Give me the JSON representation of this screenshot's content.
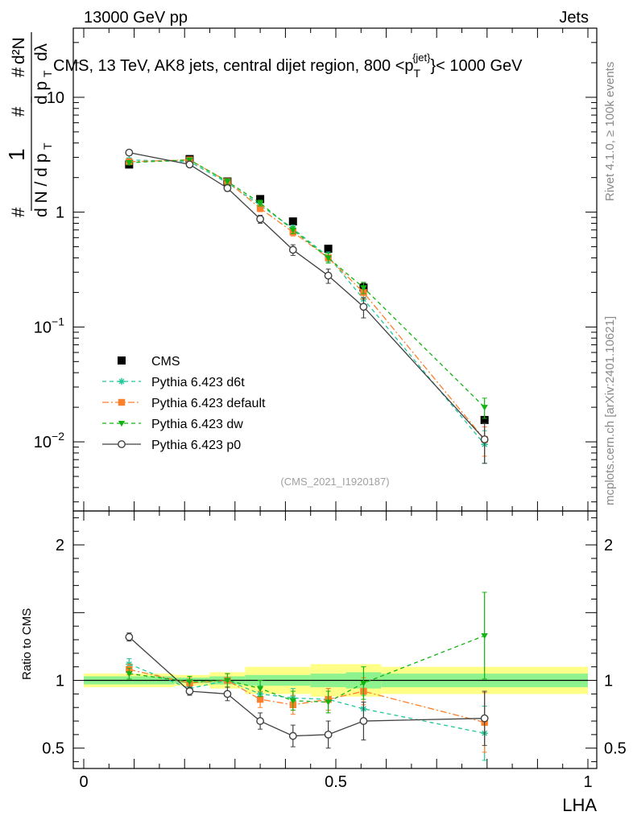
{
  "header": {
    "left": "13000 GeV pp",
    "right": "Jets"
  },
  "title": {
    "main": "CMS, 13 TeV, AK8 jets, central dijet region, 800 <p",
    "sub": "T",
    "sup": "{jet}",
    "tail": "}< 1000 GeV"
  },
  "side_labels": {
    "rivet": "Rivet 4.1.0, ≥ 100k events",
    "mcplots": "mcplots.cern.ch [arXiv:2401.10621]"
  },
  "analysis_tag": "(CMS_2021_I1920187)",
  "colors": {
    "CMS": "#000000",
    "d6t": "#1fc79a",
    "default": "#ff7f2a",
    "dw": "#12b312",
    "p0": "#404040",
    "band_inner": "#8ef28e",
    "band_outer": "#ffff88"
  },
  "chart_data": [
    {
      "type": "line",
      "title": "CMS, 13 TeV, AK8 jets, central dijet region, 800 <pT{jet}< 1000 GeV",
      "xlabel": "LHA",
      "ylabel": "1/dN/dpT dN/dpT dλ",
      "yscale": "log",
      "xlim": [
        0,
        1
      ],
      "ylim": [
        0.0025,
        40
      ],
      "y_tick_labels": [
        "10^-2",
        "10^-1",
        "1",
        "10"
      ],
      "x": [
        0.09,
        0.21,
        0.285,
        0.35,
        0.415,
        0.485,
        0.555,
        0.795
      ],
      "series": [
        {
          "name": "CMS",
          "values": [
            2.6,
            2.9,
            1.85,
            1.3,
            0.83,
            0.48,
            0.22,
            0.0155
          ],
          "errors": [
            0.1,
            0.1,
            0.07,
            0.05,
            0.04,
            0.03,
            0.02,
            0.001
          ]
        },
        {
          "name": "Pythia 6.423 d6t",
          "values": [
            2.85,
            2.75,
            1.8,
            1.15,
            0.72,
            0.41,
            0.175,
            0.0095
          ],
          "errors": [
            0.12,
            0.12,
            0.1,
            0.07,
            0.05,
            0.04,
            0.025,
            0.003
          ]
        },
        {
          "name": "Pythia 6.423 default",
          "values": [
            2.75,
            2.85,
            1.85,
            1.08,
            0.67,
            0.4,
            0.2,
            0.0105
          ],
          "errors": [
            0.12,
            0.12,
            0.1,
            0.07,
            0.05,
            0.04,
            0.025,
            0.003
          ]
        },
        {
          "name": "Pythia 6.423 dw",
          "values": [
            2.7,
            2.85,
            1.85,
            1.2,
            0.7,
            0.4,
            0.22,
            0.02
          ],
          "errors": [
            0.12,
            0.12,
            0.1,
            0.07,
            0.05,
            0.04,
            0.025,
            0.004
          ]
        },
        {
          "name": "Pythia 6.423 p0",
          "values": [
            3.3,
            2.6,
            1.62,
            0.87,
            0.47,
            0.28,
            0.15,
            0.0105
          ],
          "errors": [
            0.12,
            0.12,
            0.1,
            0.07,
            0.05,
            0.04,
            0.03,
            0.004
          ]
        }
      ]
    },
    {
      "type": "line",
      "xlabel": "LHA",
      "ylabel": "Ratio to CMS",
      "xlim": [
        0,
        1
      ],
      "ylim": [
        0.35,
        2.25
      ],
      "x_tick_labels": [
        "0",
        "0.5",
        "1"
      ],
      "y_tick_labels": [
        "0.5",
        "1",
        "2"
      ],
      "band_edges": [
        0,
        0.18,
        0.25,
        0.32,
        0.45,
        0.52,
        0.59,
        1.0
      ],
      "band_inner": [
        0.03,
        0.02,
        0.03,
        0.04,
        0.05,
        0.06,
        0.05
      ],
      "band_outer": [
        0.05,
        0.04,
        0.06,
        0.1,
        0.12,
        0.12,
        0.1
      ],
      "x": [
        0.09,
        0.21,
        0.285,
        0.35,
        0.415,
        0.485,
        0.555,
        0.795
      ],
      "series": [
        {
          "name": "Pythia 6.423 d6t",
          "values": [
            1.12,
            0.94,
            1.0,
            0.9,
            0.87,
            0.86,
            0.79,
            0.61
          ],
          "errors": [
            0.04,
            0.04,
            0.05,
            0.06,
            0.07,
            0.08,
            0.1,
            0.2
          ]
        },
        {
          "name": "Pythia 6.423 default",
          "values": [
            1.08,
            0.98,
            1.0,
            0.86,
            0.82,
            0.86,
            0.92,
            0.69
          ],
          "errors": [
            0.04,
            0.04,
            0.05,
            0.06,
            0.07,
            0.08,
            0.1,
            0.22
          ]
        },
        {
          "name": "Pythia 6.423 dw",
          "values": [
            1.05,
            0.99,
            1.0,
            0.94,
            0.85,
            0.84,
            0.98,
            1.33
          ],
          "errors": [
            0.04,
            0.04,
            0.05,
            0.06,
            0.07,
            0.08,
            0.12,
            0.32
          ]
        },
        {
          "name": "Pythia 6.423 p0",
          "values": [
            1.32,
            0.92,
            0.9,
            0.7,
            0.59,
            0.6,
            0.7,
            0.72
          ],
          "errors": [
            0.03,
            0.03,
            0.05,
            0.06,
            0.08,
            0.1,
            0.14,
            0.2
          ]
        }
      ]
    }
  ]
}
